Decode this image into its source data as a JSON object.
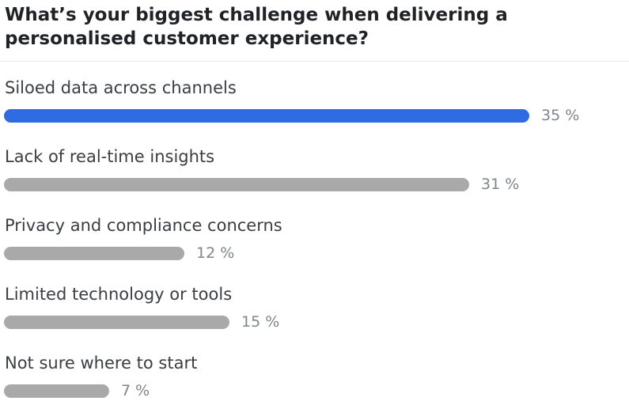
{
  "question": "What’s your biggest challenge when delivering a personalised customer experience?",
  "colors": {
    "leading_bar": "#2f6be3",
    "other_bar": "#a9a9a9",
    "percent_text": "#7e858b"
  },
  "chart_data": {
    "type": "bar",
    "orientation": "horizontal",
    "title": "What’s your biggest challenge when delivering a personalised customer experience?",
    "categories": [
      "Siloed data across channels",
      "Lack of real-time insights",
      "Privacy and compliance concerns",
      "Limited technology or tools",
      "Not sure where to start"
    ],
    "values": [
      35,
      31,
      12,
      15,
      7
    ],
    "value_labels": [
      "35 %",
      "31 %",
      "12 %",
      "15 %",
      "7 %"
    ],
    "unit": "%",
    "xlim": [
      0,
      35
    ],
    "grid": false,
    "legend": "none",
    "highlighted_category": "Siloed data across channels"
  }
}
